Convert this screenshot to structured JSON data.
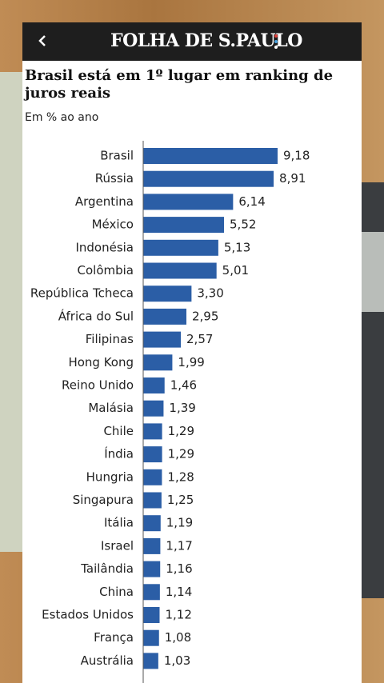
{
  "header": {
    "logo": "FOLHA DE S.PAULO"
  },
  "chart_data": {
    "type": "bar",
    "orientation": "horizontal",
    "title": "Brasil está em 1º lugar em ranking de juros reais",
    "subtitle": "Em % ao ano",
    "categories": [
      "Brasil",
      "Rússia",
      "Argentina",
      "México",
      "Indonésia",
      "Colômbia",
      "República Tcheca",
      "África do Sul",
      "Filipinas",
      "Hong Kong",
      "Reino Unido",
      "Malásia",
      "Chile",
      "Índia",
      "Hungria",
      "Singapura",
      "Itália",
      "Israel",
      "Tailândia",
      "China",
      "Estados Unidos",
      "França",
      "Austrália"
    ],
    "values": [
      9.18,
      8.91,
      6.14,
      5.52,
      5.13,
      5.01,
      3.3,
      2.95,
      2.57,
      1.99,
      1.46,
      1.39,
      1.29,
      1.29,
      1.28,
      1.25,
      1.19,
      1.17,
      1.16,
      1.14,
      1.12,
      1.08,
      1.03
    ],
    "value_labels": [
      "9,18",
      "8,91",
      "6,14",
      "5,52",
      "5,13",
      "5,01",
      "3,30",
      "2,95",
      "2,57",
      "1,99",
      "1,46",
      "1,39",
      "1,29",
      "1,29",
      "1,28",
      "1,25",
      "1,19",
      "1,17",
      "1,16",
      "1,14",
      "1,12",
      "1,08",
      "1,03"
    ],
    "color": "#2b5ea6",
    "xlim": [
      0,
      10
    ]
  }
}
